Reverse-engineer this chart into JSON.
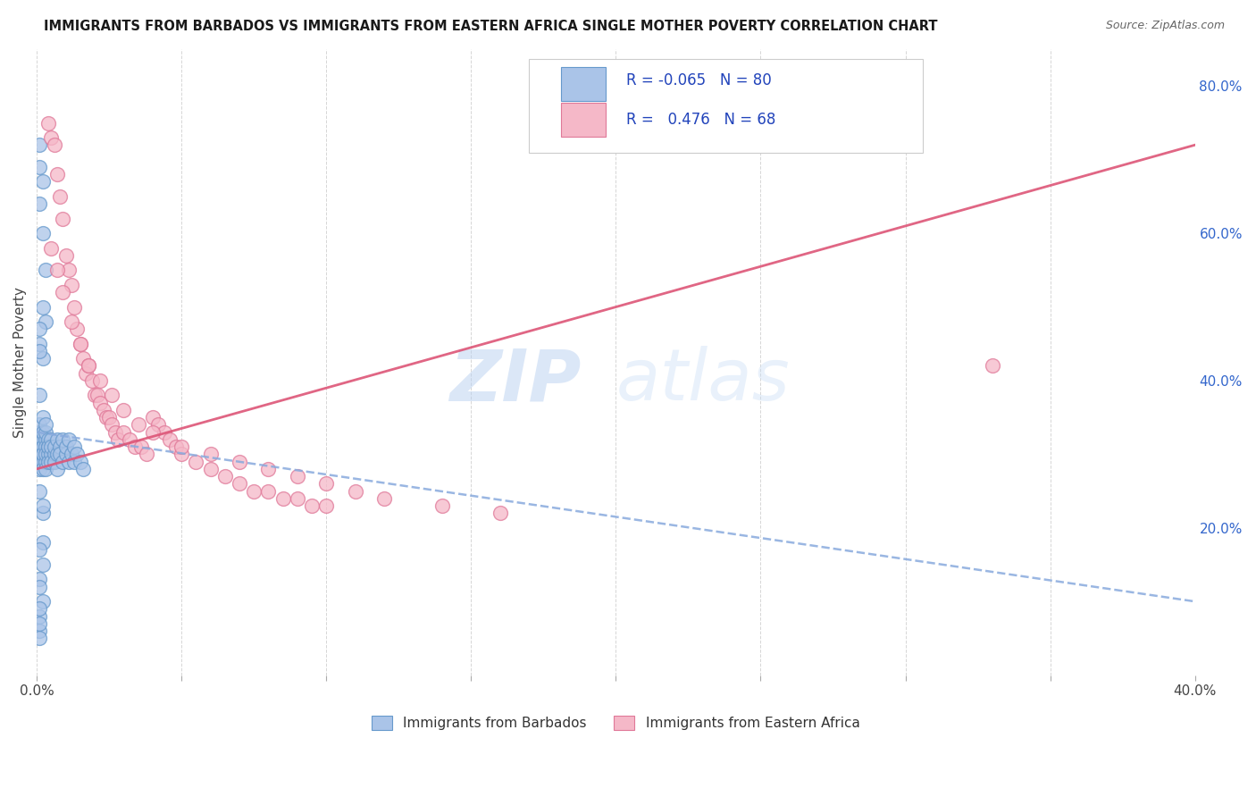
{
  "title": "IMMIGRANTS FROM BARBADOS VS IMMIGRANTS FROM EASTERN AFRICA SINGLE MOTHER POVERTY CORRELATION CHART",
  "source": "Source: ZipAtlas.com",
  "ylabel": "Single Mother Poverty",
  "xlim": [
    0.0,
    0.4
  ],
  "ylim": [
    0.0,
    0.85
  ],
  "x_ticks": [
    0.0,
    0.05,
    0.1,
    0.15,
    0.2,
    0.25,
    0.3,
    0.35,
    0.4
  ],
  "y_ticks_right": [
    0.2,
    0.4,
    0.6,
    0.8
  ],
  "barbados_color": "#aac4e8",
  "barbados_edge": "#6699cc",
  "eastern_africa_color": "#f5b8c8",
  "eastern_africa_edge": "#e07898",
  "trend_barbados_color": "#88aadd",
  "trend_eastern_africa_color": "#dd5577",
  "background_color": "#ffffff",
  "grid_color": "#cccccc",
  "watermark_zip": "ZIP",
  "watermark_atlas": "atlas",
  "legend_R1": "-0.065",
  "legend_N1": "80",
  "legend_R2": "0.476",
  "legend_N2": "68",
  "barbados_label": "Immigrants from Barbados",
  "eastern_africa_label": "Immigrants from Eastern Africa",
  "barbados_x": [
    0.001,
    0.001,
    0.001,
    0.001,
    0.001,
    0.001,
    0.001,
    0.001,
    0.002,
    0.002,
    0.002,
    0.002,
    0.002,
    0.002,
    0.002,
    0.002,
    0.002,
    0.003,
    0.003,
    0.003,
    0.003,
    0.003,
    0.003,
    0.003,
    0.004,
    0.004,
    0.004,
    0.004,
    0.004,
    0.005,
    0.005,
    0.005,
    0.005,
    0.006,
    0.006,
    0.006,
    0.007,
    0.007,
    0.007,
    0.008,
    0.008,
    0.009,
    0.009,
    0.01,
    0.01,
    0.011,
    0.011,
    0.012,
    0.013,
    0.013,
    0.014,
    0.015,
    0.016,
    0.001,
    0.001,
    0.001,
    0.001,
    0.002,
    0.002,
    0.002,
    0.002,
    0.003,
    0.003,
    0.001,
    0.001,
    0.002,
    0.002,
    0.001,
    0.001,
    0.002,
    0.001,
    0.002,
    0.001,
    0.001,
    0.002,
    0.001,
    0.001,
    0.001,
    0.001,
    0.001
  ],
  "barbados_y": [
    0.3,
    0.31,
    0.32,
    0.29,
    0.28,
    0.33,
    0.34,
    0.3,
    0.31,
    0.32,
    0.3,
    0.29,
    0.33,
    0.31,
    0.28,
    0.35,
    0.3,
    0.32,
    0.31,
    0.29,
    0.33,
    0.3,
    0.28,
    0.34,
    0.31,
    0.3,
    0.29,
    0.32,
    0.31,
    0.3,
    0.32,
    0.29,
    0.31,
    0.3,
    0.31,
    0.29,
    0.3,
    0.32,
    0.28,
    0.31,
    0.3,
    0.29,
    0.32,
    0.3,
    0.31,
    0.29,
    0.32,
    0.3,
    0.29,
    0.31,
    0.3,
    0.29,
    0.28,
    0.72,
    0.69,
    0.64,
    0.45,
    0.67,
    0.6,
    0.5,
    0.43,
    0.55,
    0.48,
    0.47,
    0.44,
    0.18,
    0.15,
    0.08,
    0.06,
    0.1,
    0.38,
    0.22,
    0.25,
    0.13,
    0.23,
    0.17,
    0.12,
    0.09,
    0.07,
    0.05
  ],
  "eastern_africa_x": [
    0.004,
    0.005,
    0.006,
    0.007,
    0.008,
    0.009,
    0.01,
    0.011,
    0.012,
    0.013,
    0.014,
    0.015,
    0.016,
    0.017,
    0.018,
    0.019,
    0.02,
    0.021,
    0.022,
    0.023,
    0.024,
    0.025,
    0.026,
    0.027,
    0.028,
    0.03,
    0.032,
    0.034,
    0.036,
    0.038,
    0.04,
    0.042,
    0.044,
    0.046,
    0.048,
    0.05,
    0.055,
    0.06,
    0.065,
    0.07,
    0.075,
    0.08,
    0.085,
    0.09,
    0.095,
    0.1,
    0.005,
    0.007,
    0.009,
    0.012,
    0.015,
    0.018,
    0.022,
    0.026,
    0.03,
    0.035,
    0.04,
    0.05,
    0.06,
    0.07,
    0.08,
    0.09,
    0.1,
    0.11,
    0.12,
    0.14,
    0.16,
    0.33
  ],
  "eastern_africa_y": [
    0.75,
    0.73,
    0.72,
    0.68,
    0.65,
    0.62,
    0.57,
    0.55,
    0.53,
    0.5,
    0.47,
    0.45,
    0.43,
    0.41,
    0.42,
    0.4,
    0.38,
    0.38,
    0.37,
    0.36,
    0.35,
    0.35,
    0.34,
    0.33,
    0.32,
    0.33,
    0.32,
    0.31,
    0.31,
    0.3,
    0.35,
    0.34,
    0.33,
    0.32,
    0.31,
    0.3,
    0.29,
    0.28,
    0.27,
    0.26,
    0.25,
    0.25,
    0.24,
    0.24,
    0.23,
    0.23,
    0.58,
    0.55,
    0.52,
    0.48,
    0.45,
    0.42,
    0.4,
    0.38,
    0.36,
    0.34,
    0.33,
    0.31,
    0.3,
    0.29,
    0.28,
    0.27,
    0.26,
    0.25,
    0.24,
    0.23,
    0.22,
    0.42
  ],
  "trend_b_x0": 0.0,
  "trend_b_y0": 0.33,
  "trend_b_x1": 0.4,
  "trend_b_y1": 0.1,
  "trend_e_x0": 0.0,
  "trend_e_y0": 0.28,
  "trend_e_x1": 0.4,
  "trend_e_y1": 0.72
}
